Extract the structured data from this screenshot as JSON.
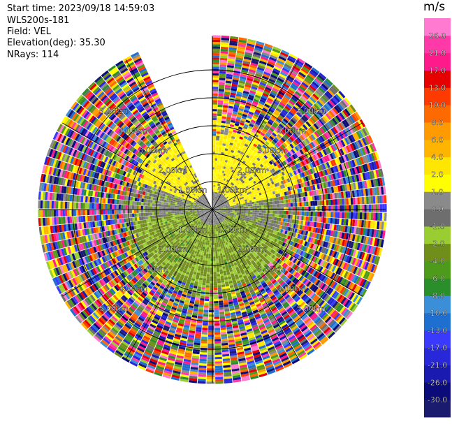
{
  "header": {
    "start_time": "Start time: 2023/09/18 14:59:03",
    "station": "WLS200s-181",
    "field": "Field: VEL",
    "elevation": "Elevation(deg): 35.30",
    "nrays": "NRays: 114"
  },
  "chart_data": {
    "type": "heatmap",
    "projection": "polar-ppi",
    "field": "VEL",
    "unit": "m/s",
    "n_rays": 114,
    "range_rings_km": [
      1.0,
      2.0,
      3.0,
      4.0,
      5.0
    ],
    "range_labels": [
      "1.00km",
      "2.00km",
      "3.00km",
      "4.00km",
      "5.00km"
    ],
    "max_range_km": 6.2,
    "missing_sector_deg": [
      -25,
      0
    ],
    "colorbar": {
      "title": "m/s",
      "colors": [
        "#1a1a6e",
        "#0b0b7a",
        "#1a1ab0",
        "#2828d8",
        "#3a3aff",
        "#1e6fd0",
        "#3b8fd8",
        "#2a8f2a",
        "#4e9a1a",
        "#6f8f1a",
        "#9acd32",
        "#6e6e6e",
        "#8a8a8a",
        "#ffff00",
        "#ffe600",
        "#ffb400",
        "#ff9a00",
        "#ff6a00",
        "#ff3a00",
        "#e60000",
        "#ff1a8c",
        "#ff3aa8",
        "#ff7ad0"
      ],
      "tick_labels": [
        "-30.0",
        "-26.0",
        "-21.0",
        "-17.0",
        "-13.0",
        "-10.0",
        "-8.0",
        "-6.0",
        "-4.0",
        "-2.0",
        "-1.0",
        "0.0",
        "1.0",
        "2.0",
        "4.0",
        "6.0",
        "8.0",
        "10.0",
        "13.0",
        "17.0",
        "21.0",
        "26.0"
      ]
    }
  }
}
